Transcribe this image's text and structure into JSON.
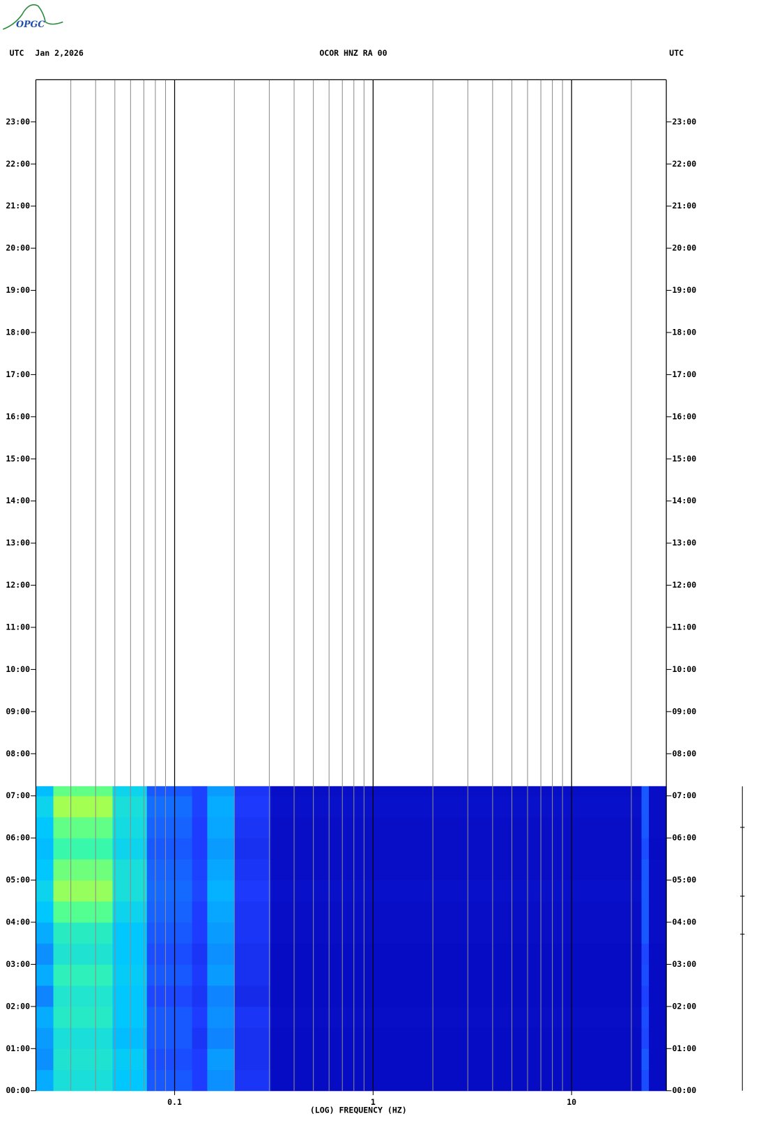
{
  "chart_data": {
    "type": "spectrogram",
    "logo": "OPGC",
    "left_label": "UTC",
    "date": "Jan 2,2026",
    "title": "OCOR HNZ RA 00",
    "right_label": "UTC",
    "x_label": "(LOG) FREQUENCY (HZ)",
    "log_x": true,
    "xlim": [
      0.02,
      30
    ],
    "xticks": [
      0.1,
      1,
      10
    ],
    "xgrid": [
      0.03,
      0.04,
      0.05,
      0.06,
      0.07,
      0.08,
      0.09,
      0.2,
      0.3,
      0.4,
      0.5,
      0.6,
      0.7,
      0.8,
      0.9,
      2,
      3,
      4,
      5,
      6,
      7,
      8,
      9,
      20
    ],
    "ylim": [
      0,
      24
    ],
    "yticks": [
      {
        "value": 0,
        "label": "00:00"
      },
      {
        "value": 1,
        "label": "01:00"
      },
      {
        "value": 2,
        "label": "02:00"
      },
      {
        "value": 3,
        "label": "03:00"
      },
      {
        "value": 4,
        "label": "04:00"
      },
      {
        "value": 5,
        "label": "05:00"
      },
      {
        "value": 6,
        "label": "06:00"
      },
      {
        "value": 7,
        "label": "07:00"
      },
      {
        "value": 8,
        "label": "08:00"
      },
      {
        "value": 9,
        "label": "09:00"
      },
      {
        "value": 10,
        "label": "10:00"
      },
      {
        "value": 11,
        "label": "11:00"
      },
      {
        "value": 12,
        "label": "12:00"
      },
      {
        "value": 13,
        "label": "13:00"
      },
      {
        "value": 14,
        "label": "14:00"
      },
      {
        "value": 15,
        "label": "15:00"
      },
      {
        "value": 16,
        "label": "16:00"
      },
      {
        "value": 17,
        "label": "17:00"
      },
      {
        "value": 18,
        "label": "18:00"
      },
      {
        "value": 19,
        "label": "19:00"
      },
      {
        "value": 20,
        "label": "20:00"
      },
      {
        "value": 21,
        "label": "21:00"
      },
      {
        "value": 22,
        "label": "22:00"
      },
      {
        "value": 23,
        "label": "23:00"
      }
    ],
    "colormap": [
      "#0000b4",
      "#1e3cff",
      "#00c8ff",
      "#40ffa0",
      "#e6ff20"
    ],
    "freq_edges": [
      0.02,
      0.0245,
      0.0487,
      0.0725,
      0.1225,
      0.146,
      0.2,
      0.305,
      22.5,
      24.5,
      30
    ],
    "time_edges": [
      0,
      0.5,
      1,
      1.5,
      2,
      2.5,
      3,
      3.5,
      4,
      4.5,
      5,
      5.5,
      6,
      6.5,
      7,
      7.23
    ],
    "z": [
      [
        0.45,
        0.6,
        0.5,
        0.3,
        0.25,
        0.4,
        0.22,
        0.05,
        0.28,
        0.05
      ],
      [
        0.4,
        0.62,
        0.52,
        0.28,
        0.25,
        0.42,
        0.2,
        0.05,
        0.3,
        0.05
      ],
      [
        0.42,
        0.6,
        0.48,
        0.3,
        0.22,
        0.38,
        0.2,
        0.05,
        0.27,
        0.05
      ],
      [
        0.45,
        0.65,
        0.5,
        0.3,
        0.25,
        0.4,
        0.22,
        0.06,
        0.28,
        0.05
      ],
      [
        0.38,
        0.63,
        0.5,
        0.27,
        0.22,
        0.38,
        0.18,
        0.05,
        0.26,
        0.05
      ],
      [
        0.45,
        0.68,
        0.52,
        0.3,
        0.24,
        0.42,
        0.2,
        0.05,
        0.28,
        0.05
      ],
      [
        0.4,
        0.62,
        0.5,
        0.28,
        0.22,
        0.4,
        0.2,
        0.05,
        0.27,
        0.05
      ],
      [
        0.45,
        0.66,
        0.5,
        0.3,
        0.25,
        0.42,
        0.22,
        0.06,
        0.3,
        0.06
      ],
      [
        0.5,
        0.78,
        0.55,
        0.32,
        0.25,
        0.44,
        0.22,
        0.06,
        0.3,
        0.06
      ],
      [
        0.55,
        0.88,
        0.6,
        0.33,
        0.27,
        0.46,
        0.24,
        0.07,
        0.3,
        0.06
      ],
      [
        0.5,
        0.82,
        0.6,
        0.32,
        0.26,
        0.44,
        0.22,
        0.06,
        0.3,
        0.06
      ],
      [
        0.48,
        0.72,
        0.55,
        0.3,
        0.25,
        0.42,
        0.2,
        0.06,
        0.28,
        0.05
      ],
      [
        0.5,
        0.8,
        0.58,
        0.32,
        0.25,
        0.44,
        0.22,
        0.06,
        0.3,
        0.06
      ],
      [
        0.55,
        0.9,
        0.6,
        0.34,
        0.26,
        0.45,
        0.24,
        0.07,
        0.3,
        0.06
      ],
      [
        0.48,
        0.8,
        0.55,
        0.3,
        0.26,
        0.42,
        0.22,
        0.06,
        0.3,
        0.06
      ]
    ]
  }
}
